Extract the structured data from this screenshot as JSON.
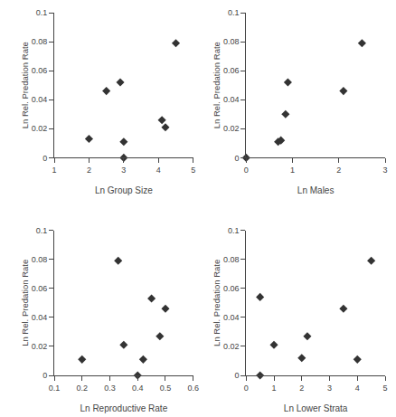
{
  "chart_data": [
    {
      "type": "scatter",
      "xlabel": "Ln Group Size",
      "ylabel": "Ln Rel. Predation Rate",
      "x": [
        2.0,
        2.5,
        2.9,
        3.0,
        3.0,
        4.1,
        4.2,
        4.5
      ],
      "values": [
        0.013,
        0.046,
        0.052,
        0.011,
        0.0,
        0.026,
        0.021,
        0.079
      ],
      "xlim": [
        1,
        5
      ],
      "ylim": [
        0,
        0.1
      ],
      "xticks": [
        1,
        2,
        3,
        4,
        5
      ],
      "yticks": [
        0,
        0.02,
        0.04,
        0.06,
        0.08,
        0.1
      ],
      "marker": "diamond",
      "color": "#333333",
      "grid": false
    },
    {
      "type": "scatter",
      "xlabel": "Ln Males",
      "ylabel": "Ln Rel. Predation Rate",
      "x": [
        0.0,
        0.69,
        0.75,
        0.85,
        0.9,
        2.1,
        2.5
      ],
      "values": [
        0.0,
        0.011,
        0.012,
        0.03,
        0.052,
        0.046,
        0.079
      ],
      "xlim": [
        0,
        3
      ],
      "ylim": [
        0,
        0.1
      ],
      "xticks": [
        0,
        1,
        2,
        3
      ],
      "yticks": [
        0,
        0.02,
        0.04,
        0.06,
        0.08,
        0.1
      ],
      "marker": "diamond",
      "color": "#333333",
      "grid": false
    },
    {
      "type": "scatter",
      "xlabel": "Ln Reproductive Rate",
      "ylabel": "Ln Rel. Predation Rate",
      "x": [
        0.2,
        0.33,
        0.35,
        0.4,
        0.42,
        0.45,
        0.48,
        0.5
      ],
      "values": [
        0.011,
        0.079,
        0.021,
        0.0,
        0.011,
        0.053,
        0.027,
        0.046
      ],
      "xlim": [
        0.1,
        0.6
      ],
      "ylim": [
        0,
        0.1
      ],
      "xticks": [
        0.1,
        0.2,
        0.3,
        0.4,
        0.5,
        0.6
      ],
      "yticks": [
        0,
        0.02,
        0.04,
        0.06,
        0.08,
        0.1
      ],
      "marker": "diamond",
      "color": "#333333",
      "grid": false
    },
    {
      "type": "scatter",
      "xlabel": "Ln Lower Strata",
      "ylabel": "Ln Rel. Predation Rate",
      "x": [
        0.5,
        0.5,
        1.0,
        2.0,
        2.2,
        3.5,
        4.0,
        4.5
      ],
      "values": [
        0.0,
        0.054,
        0.021,
        0.012,
        0.027,
        0.046,
        0.011,
        0.079
      ],
      "xlim": [
        0,
        5
      ],
      "ylim": [
        0,
        0.1
      ],
      "xticks": [
        0,
        1,
        2,
        3,
        4,
        5
      ],
      "yticks": [
        0,
        0.02,
        0.04,
        0.06,
        0.08,
        0.1
      ],
      "marker": "diamond",
      "color": "#333333",
      "grid": false
    }
  ]
}
